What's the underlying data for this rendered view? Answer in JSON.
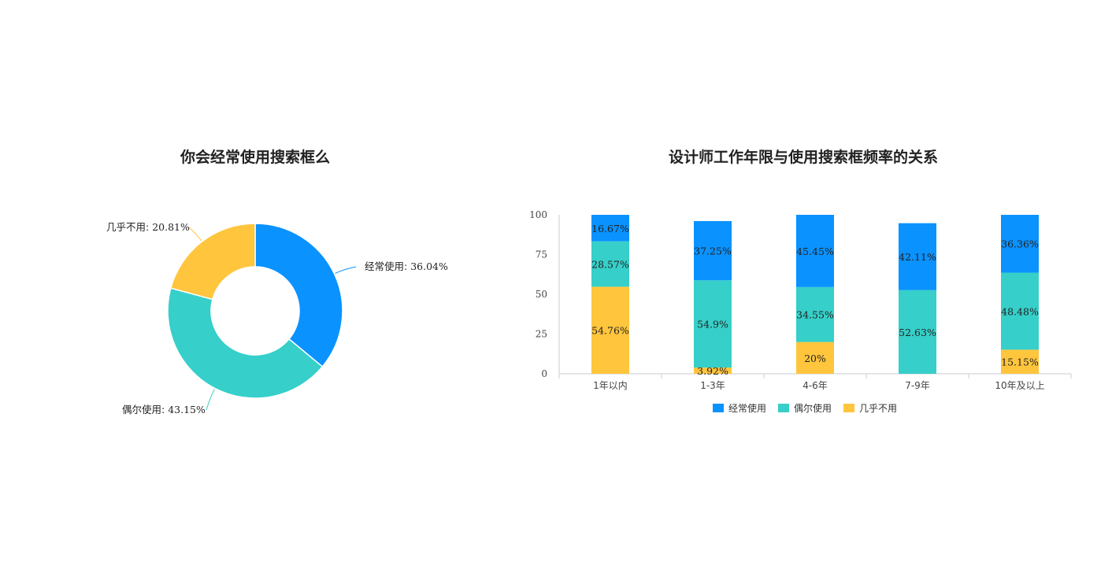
{
  "chart_data": [
    {
      "type": "pie",
      "title": "你会经常使用搜索框么",
      "slices": [
        {
          "name": "经常使用",
          "value": 36.04,
          "label": "36.04%",
          "color": "#0a92ff"
        },
        {
          "name": "偶尔使用",
          "value": 43.15,
          "label": "43.15%",
          "color": "#36cfc9"
        },
        {
          "name": "几乎不用",
          "value": 20.81,
          "label": "20.81%",
          "color": "#ffc53d"
        }
      ],
      "donut": true
    },
    {
      "type": "bar",
      "stacked": true,
      "title": "设计师工作年限与使用搜索框频率的关系",
      "categories": [
        "1年以内",
        "1-3年",
        "4-6年",
        "7-9年",
        "10年及以上"
      ],
      "ylim": [
        0,
        100
      ],
      "yticks": [
        "0",
        "25",
        "50",
        "75",
        "100"
      ],
      "series": [
        {
          "name": "几乎不用",
          "color": "#ffc53d",
          "values": [
            54.76,
            3.92,
            20,
            0,
            15.15
          ],
          "labels": [
            "54.76%",
            "3.92%",
            "20%",
            "",
            "15.15%"
          ]
        },
        {
          "name": "偶尔使用",
          "color": "#36cfc9",
          "values": [
            28.57,
            54.9,
            34.55,
            52.63,
            48.48
          ],
          "labels": [
            "28.57%",
            "54.9%",
            "34.55%",
            "52.63%",
            "48.48%"
          ]
        },
        {
          "name": "经常使用",
          "color": "#0a92ff",
          "values": [
            16.67,
            37.25,
            45.45,
            42.11,
            36.36
          ],
          "labels": [
            "16.67%",
            "37.25%",
            "45.45%",
            "42.11%",
            "36.36%"
          ]
        }
      ],
      "legend": {
        "position": "bottom",
        "order": [
          "经常使用",
          "偶尔使用",
          "几乎不用"
        ]
      }
    }
  ]
}
